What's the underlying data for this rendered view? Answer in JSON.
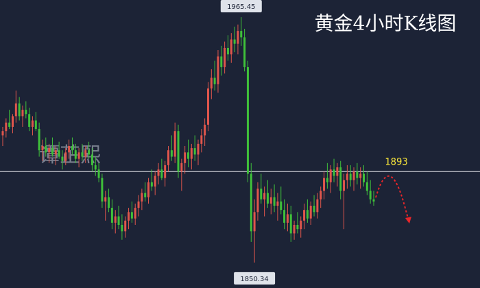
{
  "chart_data": {
    "type": "candlestick",
    "title": "黄金4小时K线图",
    "watermark": "谭芷熙",
    "up_color": "#e0564c",
    "down_color": "#3fc13a",
    "ylim": [
      1838.4,
      1973.5
    ],
    "level": 1893,
    "max_label": 1965.45,
    "min_label": 1850.34,
    "candles": [
      [
        1910,
        1914,
        1905,
        1912
      ],
      [
        1912,
        1918,
        1909,
        1916
      ],
      [
        1916,
        1922,
        1913,
        1914
      ],
      [
        1914,
        1920,
        1911,
        1919
      ],
      [
        1919,
        1931,
        1916,
        1925
      ],
      [
        1925,
        1928,
        1917,
        1919
      ],
      [
        1919,
        1924,
        1914,
        1922
      ],
      [
        1922,
        1926,
        1918,
        1920
      ],
      [
        1920,
        1923,
        1912,
        1914
      ],
      [
        1914,
        1919,
        1910,
        1917
      ],
      [
        1917,
        1921,
        1912,
        1913
      ],
      [
        1913,
        1916,
        1900,
        1903
      ],
      [
        1903,
        1908,
        1898,
        1905
      ],
      [
        1905,
        1909,
        1900,
        1902
      ],
      [
        1902,
        1906,
        1897,
        1904
      ],
      [
        1904,
        1909,
        1900,
        1901
      ],
      [
        1901,
        1905,
        1896,
        1903
      ],
      [
        1903,
        1907,
        1899,
        1900
      ],
      [
        1900,
        1903,
        1894,
        1898
      ],
      [
        1898,
        1904,
        1896,
        1902
      ],
      [
        1902,
        1908,
        1899,
        1905
      ],
      [
        1905,
        1909,
        1901,
        1903
      ],
      [
        1903,
        1906,
        1897,
        1899
      ],
      [
        1899,
        1904,
        1895,
        1902
      ],
      [
        1902,
        1906,
        1898,
        1900
      ],
      [
        1900,
        1905,
        1897,
        1903
      ],
      [
        1903,
        1907,
        1899,
        1901
      ],
      [
        1901,
        1904,
        1893,
        1896
      ],
      [
        1896,
        1900,
        1891,
        1894
      ],
      [
        1894,
        1897,
        1888,
        1890
      ],
      [
        1890,
        1892,
        1876,
        1879
      ],
      [
        1879,
        1884,
        1870,
        1881
      ],
      [
        1881,
        1885,
        1874,
        1876
      ],
      [
        1876,
        1880,
        1866,
        1869
      ],
      [
        1869,
        1875,
        1864,
        1872
      ],
      [
        1872,
        1877,
        1866,
        1868
      ],
      [
        1868,
        1873,
        1861,
        1865
      ],
      [
        1865,
        1872,
        1862,
        1870
      ],
      [
        1870,
        1876,
        1866,
        1874
      ],
      [
        1874,
        1879,
        1869,
        1871
      ],
      [
        1871,
        1878,
        1868,
        1876
      ],
      [
        1876,
        1882,
        1872,
        1879
      ],
      [
        1879,
        1885,
        1875,
        1883
      ],
      [
        1883,
        1888,
        1879,
        1881
      ],
      [
        1881,
        1890,
        1878,
        1888
      ],
      [
        1888,
        1894,
        1884,
        1886
      ],
      [
        1886,
        1893,
        1882,
        1891
      ],
      [
        1891,
        1897,
        1887,
        1894
      ],
      [
        1894,
        1899,
        1889,
        1890
      ],
      [
        1890,
        1898,
        1886,
        1896
      ],
      [
        1896,
        1905,
        1893,
        1903
      ],
      [
        1903,
        1910,
        1898,
        1900
      ],
      [
        1900,
        1916,
        1897,
        1912
      ],
      [
        1912,
        1915,
        1890,
        1893
      ],
      [
        1893,
        1899,
        1884,
        1897
      ],
      [
        1897,
        1905,
        1892,
        1902
      ],
      [
        1902,
        1908,
        1895,
        1899
      ],
      [
        1899,
        1906,
        1894,
        1904
      ],
      [
        1904,
        1910,
        1898,
        1901
      ],
      [
        1901,
        1908,
        1896,
        1906
      ],
      [
        1906,
        1913,
        1902,
        1910
      ],
      [
        1910,
        1918,
        1905,
        1915
      ],
      [
        1915,
        1935,
        1912,
        1932
      ],
      [
        1932,
        1941,
        1927,
        1937
      ],
      [
        1937,
        1945,
        1931,
        1934
      ],
      [
        1934,
        1950,
        1930,
        1947
      ],
      [
        1947,
        1952,
        1938,
        1942
      ],
      [
        1942,
        1954,
        1939,
        1951
      ],
      [
        1951,
        1957,
        1945,
        1948
      ],
      [
        1948,
        1958,
        1944,
        1955
      ],
      [
        1955,
        1961,
        1949,
        1953
      ],
      [
        1953,
        1962,
        1948,
        1959
      ],
      [
        1959,
        1965.45,
        1952,
        1956
      ],
      [
        1956,
        1960,
        1940,
        1942
      ],
      [
        1942,
        1945,
        1888,
        1892
      ],
      [
        1892,
        1897,
        1860,
        1865
      ],
      [
        1865,
        1880,
        1850.34,
        1874
      ],
      [
        1874,
        1888,
        1870,
        1885
      ],
      [
        1885,
        1892,
        1878,
        1880
      ],
      [
        1880,
        1886,
        1872,
        1883
      ],
      [
        1883,
        1889,
        1876,
        1878
      ],
      [
        1878,
        1885,
        1873,
        1881
      ],
      [
        1881,
        1887,
        1874,
        1877
      ],
      [
        1877,
        1883,
        1870,
        1879
      ],
      [
        1879,
        1886,
        1873,
        1875
      ],
      [
        1875,
        1880,
        1866,
        1869
      ],
      [
        1869,
        1878,
        1865,
        1873
      ],
      [
        1873,
        1877,
        1860,
        1864
      ],
      [
        1864,
        1870,
        1861,
        1868
      ],
      [
        1868,
        1874,
        1864,
        1866
      ],
      [
        1866,
        1872,
        1862,
        1870
      ],
      [
        1870,
        1878,
        1866,
        1875
      ],
      [
        1875,
        1880,
        1869,
        1871
      ],
      [
        1871,
        1879,
        1868,
        1877
      ],
      [
        1877,
        1882,
        1872,
        1874
      ],
      [
        1874,
        1883,
        1871,
        1880
      ],
      [
        1880,
        1886,
        1876,
        1884
      ],
      [
        1884,
        1893,
        1880,
        1890
      ],
      [
        1890,
        1897,
        1885,
        1888
      ],
      [
        1888,
        1896,
        1883,
        1894
      ],
      [
        1894,
        1899,
        1888,
        1891
      ],
      [
        1891,
        1897,
        1886,
        1895
      ],
      [
        1895,
        1898,
        1880,
        1884
      ],
      [
        1884,
        1892,
        1866,
        1889
      ],
      [
        1889,
        1896,
        1885,
        1892
      ],
      [
        1892,
        1896,
        1886,
        1889
      ],
      [
        1889,
        1895,
        1884,
        1893
      ],
      [
        1893,
        1897,
        1887,
        1890
      ],
      [
        1890,
        1895,
        1885,
        1892
      ],
      [
        1892,
        1896,
        1886,
        1888
      ],
      [
        1888,
        1893,
        1882,
        1884
      ],
      [
        1884,
        1889,
        1878,
        1880
      ],
      [
        1880,
        1884,
        1877,
        1879
      ]
    ]
  }
}
